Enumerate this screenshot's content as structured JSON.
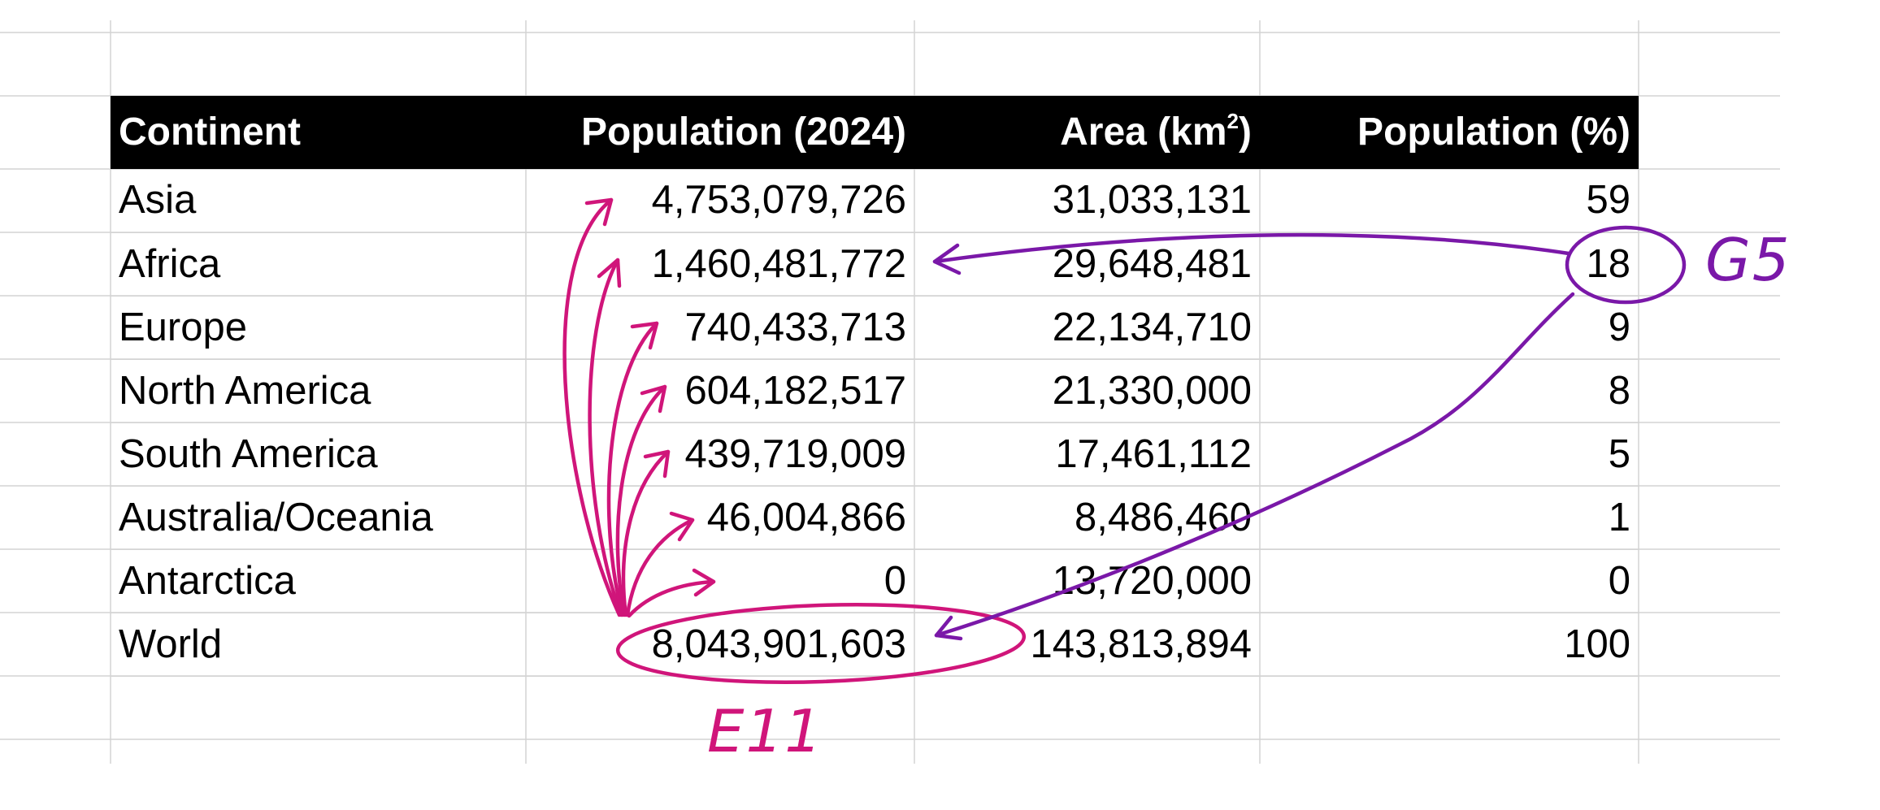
{
  "table": {
    "headers": {
      "continent": "Continent",
      "population": "Population (2024)",
      "area_base": "Area (km",
      "area_sup": "2",
      "area_close": ")",
      "percent": "Population (%)"
    },
    "rows": [
      {
        "continent": "Asia",
        "population": "4,753,079,726",
        "area": "31,033,131",
        "percent": "59"
      },
      {
        "continent": "Africa",
        "population": "1,460,481,772",
        "area": "29,648,481",
        "percent": "18"
      },
      {
        "continent": "Europe",
        "population": "740,433,713",
        "area": "22,134,710",
        "percent": "9"
      },
      {
        "continent": "North America",
        "population": "604,182,517",
        "area": "21,330,000",
        "percent": "8"
      },
      {
        "continent": "South America",
        "population": "439,719,009",
        "area": "17,461,112",
        "percent": "5"
      },
      {
        "continent": "Australia/Oceania",
        "population": "46,004,866",
        "area": "8,486,460",
        "percent": "1"
      },
      {
        "continent": "Antarctica",
        "population": "0",
        "area": "13,720,000",
        "percent": "0"
      },
      {
        "continent": "World",
        "population": "8,043,901,603",
        "area": "143,813,894",
        "percent": "100"
      }
    ]
  },
  "annotations": {
    "world_total_label": "E11",
    "africa_percent_label": "G5",
    "colors": {
      "precedents": "#d0157a",
      "dependents": "#7a18a8",
      "gridline": "#d4d4d4",
      "header_bg": "#000000",
      "header_text": "#ffffff"
    }
  }
}
